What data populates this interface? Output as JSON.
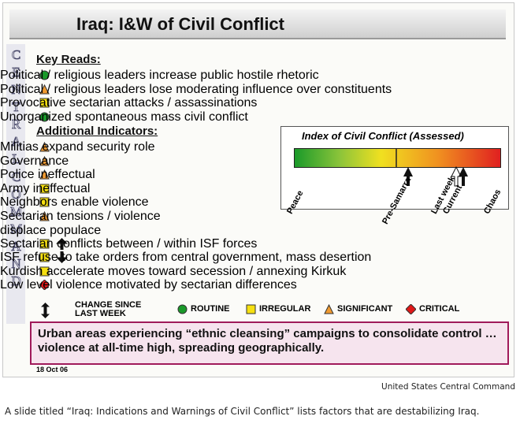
{
  "slide": {
    "title": "Iraq: I&W of Civil Conflict",
    "side_label": [
      "CENTRAL",
      "COMMAND"
    ],
    "key_reads": {
      "heading": "Key Reads:",
      "items": [
        {
          "text": "Political / religious leaders increase public hostile rhetoric",
          "marker": "circle"
        },
        {
          "text": "Political / religious leaders lose moderating influence over constituents",
          "marker": "triangle"
        },
        {
          "text": "Provocative sectarian attacks / assassinations",
          "marker": "square"
        },
        {
          "text": "Unorganized spontaneous mass civil conflict",
          "marker": "circle"
        }
      ]
    },
    "additional_indicators": {
      "heading": "Additional Indicators:",
      "items": [
        {
          "text": "Militias expand security role",
          "marker": "triangle"
        },
        {
          "text": "Governance",
          "marker": "triangle"
        },
        {
          "text": "Police ineffectual",
          "marker": "triangle"
        },
        {
          "text": "Army ineffectual",
          "marker": "square"
        },
        {
          "text": "Neighbors enable violence",
          "marker": "square"
        },
        {
          "text": "Sectarian tensions / violence displace populace",
          "marker": "triangle"
        },
        {
          "text": "Sectarian conflicts between / within ISF forces",
          "marker": "square",
          "arrow": "up"
        },
        {
          "text": "ISF refuse to take orders from central government, mass desertion",
          "marker": "square",
          "arrow": "down"
        },
        {
          "text": "Kurdish accelerate moves toward secession / annexing Kirkuk",
          "marker": "square"
        },
        {
          "text": "Low level violence motivated by sectarian differences",
          "marker": "diamond"
        }
      ]
    },
    "index": {
      "title": "Index of Civil Conflict (Assessed)",
      "labels": [
        "Peace",
        "Pre-Samarra",
        "Last week",
        "Current",
        "Chaos"
      ]
    },
    "legend": {
      "change": "CHANGE SINCE LAST WEEK",
      "items": [
        {
          "label": "ROUTINE",
          "marker": "circle"
        },
        {
          "label": "IRREGULAR",
          "marker": "square"
        },
        {
          "label": "SIGNIFICANT",
          "marker": "triangle"
        },
        {
          "label": "CRITICAL",
          "marker": "diamond"
        }
      ]
    },
    "summary": "Urban areas experiencing “ethnic cleansing” campaigns to consolidate control … violence at all-time high, spreading geographically.",
    "date": "18 Oct 06"
  },
  "credit": "United States Central Command",
  "caption": "A slide titled “Iraq: Indications and Warnings of Civil Conflict” lists factors that are destabilizing Iraq."
}
